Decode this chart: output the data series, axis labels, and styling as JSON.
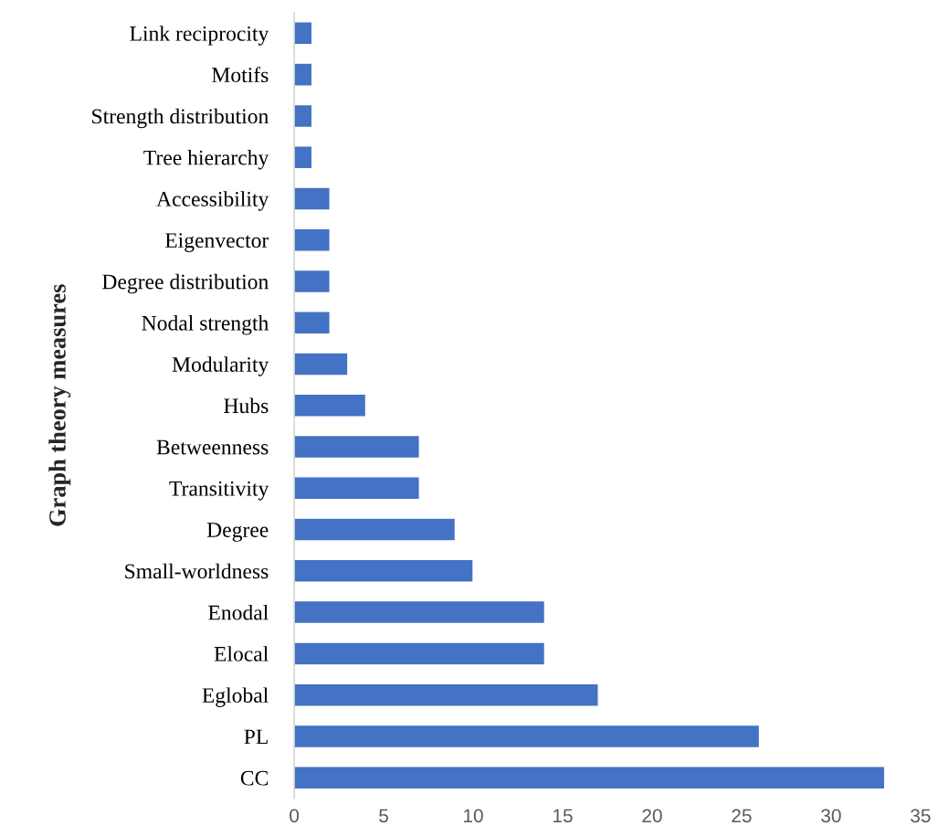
{
  "chart_data": {
    "type": "bar",
    "orientation": "horizontal",
    "ylabel": "Graph theory measures",
    "categories": [
      "Link reciprocity",
      "Motifs",
      "Strength distribution",
      "Tree hierarchy",
      "Accessibility",
      "Eigenvector",
      "Degree distribution",
      "Nodal strength",
      "Modularity",
      "Hubs",
      "Betweenness",
      "Transitivity",
      "Degree",
      "Small-worldness",
      "Enodal",
      "Elocal",
      "Eglobal",
      "PL",
      "CC"
    ],
    "values": [
      1,
      1,
      1,
      1,
      2,
      2,
      2,
      2,
      3,
      4,
      7,
      7,
      9,
      10,
      14,
      14,
      17,
      26,
      33
    ],
    "color": "#4472c4",
    "xlim": [
      0,
      35
    ],
    "xticks": [
      0,
      5,
      10,
      15,
      20,
      25,
      30,
      35
    ],
    "grid": false,
    "legend": false
  }
}
